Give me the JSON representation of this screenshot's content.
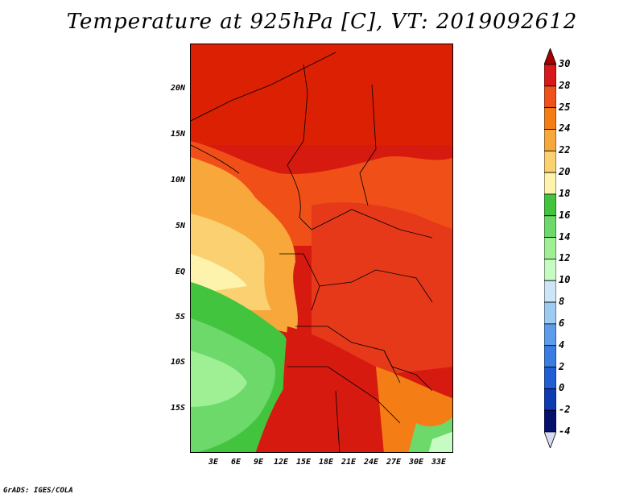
{
  "title": "Temperature at 925hPa [C], VT: 2019092612",
  "credit": "GrADS: IGES/COLA",
  "map": {
    "lat_labels": [
      "20N",
      "15N",
      "10N",
      "5N",
      "EQ",
      "5S",
      "10S",
      "15S"
    ],
    "lon_labels": [
      "3E",
      "6E",
      "9E",
      "12E",
      "15E",
      "18E",
      "21E",
      "24E",
      "27E",
      "30E",
      "33E"
    ]
  },
  "colorbar": {
    "labels": [
      "30",
      "28",
      "25",
      "24",
      "22",
      "20",
      "18",
      "16",
      "14",
      "12",
      "10",
      "8",
      "6",
      "4",
      "2",
      "0",
      "-2",
      "-4"
    ],
    "colors": [
      "#a50000",
      "#d7191c",
      "#f0501a",
      "#f57d15",
      "#f8a83b",
      "#fbd071",
      "#fef3ad",
      "#43c43e",
      "#6dd96b",
      "#9ff095",
      "#c6fcc3",
      "#cce6f8",
      "#9ecbf2",
      "#5c9ceb",
      "#3a7de0",
      "#1f5ed3",
      "#0e3bb2",
      "#08106e",
      "#d7dbf4"
    ]
  }
}
